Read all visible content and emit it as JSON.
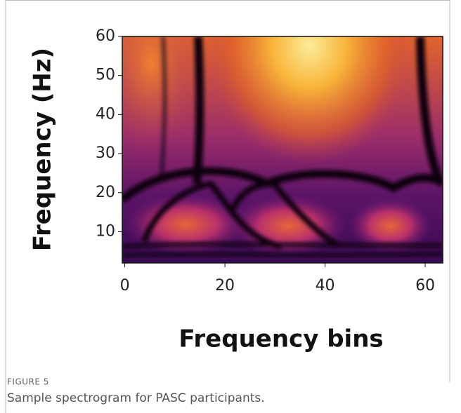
{
  "chart_data": {
    "type": "spectrogram",
    "xlabel": "Frequency bins",
    "ylabel": "Frequency (Hz)",
    "xlim": [
      -0.5,
      63.5
    ],
    "ylim": [
      2,
      60
    ],
    "xticks": [
      0,
      20,
      40,
      60
    ],
    "yticks": [
      10,
      20,
      30,
      40,
      50,
      60
    ]
  },
  "caption": {
    "label": "FIGURE 5",
    "text": "Sample spectrogram for PASC participants."
  }
}
